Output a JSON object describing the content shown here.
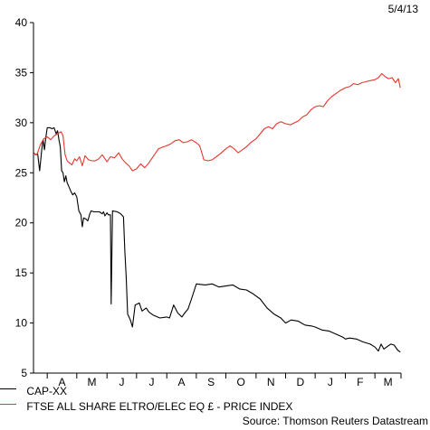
{
  "date_stamp": "5/4/13",
  "source": "Source: Thomson Reuters Datastream",
  "chart_data": {
    "type": "line",
    "x_tick_labels": [
      "A",
      "M",
      "J",
      "J",
      "A",
      "S",
      "O",
      "N",
      "D",
      "J",
      "F",
      "M"
    ],
    "y_ticks": [
      5,
      10,
      15,
      20,
      25,
      30,
      35,
      40
    ],
    "ylim": [
      5,
      40
    ],
    "x_domain_weeks": [
      0,
      53.5
    ],
    "month_start_weeks": [
      2.0,
      6.3,
      10.7,
      15.0,
      19.4,
      23.7,
      28.0,
      32.4,
      36.7,
      41.0,
      45.4,
      49.7,
      53.5
    ],
    "grid": false,
    "legend_position": "bottom-left",
    "series": [
      {
        "name": "CAP-XX",
        "color": "#000000",
        "points": [
          [
            0,
            27
          ],
          [
            0.3,
            26.8
          ],
          [
            0.6,
            26.9
          ],
          [
            0.9,
            25.2
          ],
          [
            1.2,
            27.3
          ],
          [
            1.4,
            28.3
          ],
          [
            1.6,
            27.3
          ],
          [
            1.8,
            28.6
          ],
          [
            2.0,
            29.5
          ],
          [
            2.4,
            29.5
          ],
          [
            2.7,
            29.4
          ],
          [
            3.0,
            29.5
          ],
          [
            3.3,
            28.9
          ],
          [
            3.5,
            29.2
          ],
          [
            3.7,
            28.3
          ],
          [
            3.9,
            27.6
          ],
          [
            4.1,
            25.2
          ],
          [
            4.3,
            25.0
          ],
          [
            4.5,
            24.1
          ],
          [
            4.7,
            24.7
          ],
          [
            4.9,
            24.0
          ],
          [
            5.1,
            23.7
          ],
          [
            5.4,
            23.2
          ],
          [
            5.7,
            22.8
          ],
          [
            6.0,
            23.0
          ],
          [
            6.3,
            22.6
          ],
          [
            6.6,
            21.2
          ],
          [
            6.9,
            20.8
          ],
          [
            7.1,
            19.6
          ],
          [
            7.3,
            20.5
          ],
          [
            7.6,
            20.4
          ],
          [
            7.9,
            20.2
          ],
          [
            8.2,
            20.9
          ],
          [
            8.4,
            21.2
          ],
          [
            8.8,
            21.1
          ],
          [
            9.2,
            21.1
          ],
          [
            9.6,
            21.1
          ],
          [
            10.0,
            20.9
          ],
          [
            10.2,
            21.1
          ],
          [
            10.4,
            20.7
          ],
          [
            10.7,
            21.0
          ],
          [
            10.9,
            20.8
          ],
          [
            11.2,
            20.8
          ],
          [
            11.3,
            11.9
          ],
          [
            11.5,
            21.2
          ],
          [
            12.2,
            21.1
          ],
          [
            12.7,
            20.9
          ],
          [
            13.1,
            20.6
          ],
          [
            13.3,
            17.2
          ],
          [
            13.5,
            14.6
          ],
          [
            13.7,
            10.9
          ],
          [
            13.9,
            10.6
          ],
          [
            14.1,
            10.3
          ],
          [
            14.4,
            9.6
          ],
          [
            14.8,
            11.8
          ],
          [
            15.4,
            12.0
          ],
          [
            15.8,
            11.2
          ],
          [
            16.4,
            11.5
          ],
          [
            16.8,
            11.1
          ],
          [
            17.4,
            10.8
          ],
          [
            18.4,
            10.5
          ],
          [
            19.4,
            10.6
          ],
          [
            19.8,
            10.5
          ],
          [
            20.4,
            11.8
          ],
          [
            21.0,
            11.0
          ],
          [
            21.6,
            10.6
          ],
          [
            22.0,
            11.0
          ],
          [
            22.5,
            11.4
          ],
          [
            23.0,
            12.4
          ],
          [
            23.7,
            13.9
          ],
          [
            25.0,
            13.8
          ],
          [
            26.0,
            13.9
          ],
          [
            27.0,
            13.6
          ],
          [
            28.0,
            13.7
          ],
          [
            29.0,
            13.8
          ],
          [
            30.0,
            13.4
          ],
          [
            31.0,
            13.3
          ],
          [
            32.0,
            12.9
          ],
          [
            33.0,
            12.4
          ],
          [
            34.0,
            11.5
          ],
          [
            35.0,
            10.9
          ],
          [
            36.0,
            10.5
          ],
          [
            36.7,
            10.0
          ],
          [
            37.5,
            10.3
          ],
          [
            38.5,
            10.2
          ],
          [
            39.5,
            9.8
          ],
          [
            40.5,
            9.7
          ],
          [
            41.0,
            9.6
          ],
          [
            42.0,
            9.3
          ],
          [
            43.0,
            9.2
          ],
          [
            44.0,
            8.9
          ],
          [
            45.0,
            8.6
          ],
          [
            45.4,
            8.4
          ],
          [
            46.0,
            8.5
          ],
          [
            47.0,
            8.4
          ],
          [
            48.0,
            8.1
          ],
          [
            49.0,
            7.9
          ],
          [
            49.7,
            7.6
          ],
          [
            50.2,
            7.2
          ],
          [
            50.6,
            7.9
          ],
          [
            51.0,
            7.4
          ],
          [
            52.0,
            7.9
          ],
          [
            52.5,
            7.8
          ],
          [
            53.0,
            7.3
          ],
          [
            53.4,
            7.1
          ]
        ]
      },
      {
        "name": "FTSE ALL SHARE ELTRO/ELEC EQ £ - PRICE INDEX",
        "color": "#e8362e",
        "points": [
          [
            0,
            26.9
          ],
          [
            0.5,
            26.8
          ],
          [
            1.0,
            27.8
          ],
          [
            1.5,
            28.4
          ],
          [
            2.0,
            28.6
          ],
          [
            2.5,
            28.3
          ],
          [
            3.0,
            28.7
          ],
          [
            3.5,
            28.9
          ],
          [
            4.0,
            29.1
          ],
          [
            4.3,
            28.7
          ],
          [
            4.6,
            26.8
          ],
          [
            4.9,
            26.2
          ],
          [
            5.2,
            26.0
          ],
          [
            5.6,
            25.8
          ],
          [
            6.0,
            26.4
          ],
          [
            6.3,
            26.2
          ],
          [
            6.7,
            26.6
          ],
          [
            7.1,
            25.7
          ],
          [
            7.5,
            26.7
          ],
          [
            8.0,
            26.3
          ],
          [
            8.5,
            26.2
          ],
          [
            9.0,
            26.2
          ],
          [
            9.5,
            26.4
          ],
          [
            10.0,
            26.8
          ],
          [
            10.7,
            26.1
          ],
          [
            11.2,
            26.6
          ],
          [
            11.8,
            26.5
          ],
          [
            12.4,
            27.0
          ],
          [
            12.9,
            26.4
          ],
          [
            13.4,
            26.0
          ],
          [
            13.9,
            25.7
          ],
          [
            14.4,
            25.2
          ],
          [
            15.0,
            25.4
          ],
          [
            15.6,
            25.9
          ],
          [
            16.2,
            25.5
          ],
          [
            16.8,
            26.0
          ],
          [
            17.5,
            26.7
          ],
          [
            18.2,
            27.4
          ],
          [
            18.9,
            27.6
          ],
          [
            19.4,
            27.7
          ],
          [
            20.0,
            27.9
          ],
          [
            20.6,
            28.2
          ],
          [
            21.2,
            28.3
          ],
          [
            21.8,
            28.0
          ],
          [
            22.4,
            28.1
          ],
          [
            23.0,
            28.3
          ],
          [
            23.7,
            28.0
          ],
          [
            24.2,
            27.7
          ],
          [
            24.8,
            26.3
          ],
          [
            25.4,
            26.2
          ],
          [
            26.0,
            26.3
          ],
          [
            26.6,
            26.6
          ],
          [
            27.2,
            26.9
          ],
          [
            28.0,
            27.4
          ],
          [
            28.6,
            27.7
          ],
          [
            29.2,
            27.4
          ],
          [
            29.8,
            27.0
          ],
          [
            30.4,
            27.3
          ],
          [
            31.0,
            27.6
          ],
          [
            31.6,
            28.0
          ],
          [
            32.4,
            28.4
          ],
          [
            33.0,
            28.9
          ],
          [
            33.6,
            29.4
          ],
          [
            34.2,
            29.6
          ],
          [
            34.8,
            29.4
          ],
          [
            35.4,
            29.9
          ],
          [
            36.0,
            30.1
          ],
          [
            36.7,
            29.9
          ],
          [
            37.4,
            29.8
          ],
          [
            38.0,
            30.0
          ],
          [
            38.6,
            30.2
          ],
          [
            39.2,
            30.6
          ],
          [
            39.8,
            30.8
          ],
          [
            40.4,
            31.3
          ],
          [
            41.0,
            31.6
          ],
          [
            41.6,
            31.7
          ],
          [
            42.2,
            31.6
          ],
          [
            42.8,
            32.2
          ],
          [
            43.4,
            32.6
          ],
          [
            44.0,
            32.9
          ],
          [
            44.6,
            33.2
          ],
          [
            45.4,
            33.5
          ],
          [
            46.0,
            33.6
          ],
          [
            46.6,
            33.9
          ],
          [
            47.2,
            33.8
          ],
          [
            47.8,
            34.0
          ],
          [
            48.4,
            34.1
          ],
          [
            49.0,
            34.2
          ],
          [
            49.7,
            34.3
          ],
          [
            50.2,
            34.5
          ],
          [
            50.7,
            34.9
          ],
          [
            51.2,
            34.6
          ],
          [
            51.7,
            34.4
          ],
          [
            52.2,
            34.5
          ],
          [
            52.7,
            34.0
          ],
          [
            53.1,
            34.4
          ],
          [
            53.4,
            33.5
          ]
        ]
      }
    ]
  }
}
